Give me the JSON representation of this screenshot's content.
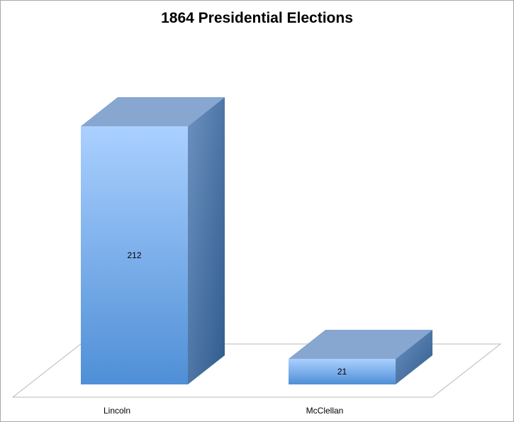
{
  "chart_data": {
    "type": "bar",
    "style": "3d-column",
    "title": "1864 Presidential Elections",
    "xlabel": "",
    "ylabel": "",
    "categories": [
      "Lincoln",
      "McClellan"
    ],
    "values": [
      212,
      21
    ],
    "data_labels": [
      "212",
      "21"
    ],
    "ylim": [
      0,
      212
    ],
    "grid": false,
    "legend": "none",
    "colors": {
      "front_top": "#aad0ff",
      "front_bottom": "#4f8fd6",
      "top_face": "#87a6d0",
      "side_light": "#6d91c0",
      "side_dark": "#2f5c8c",
      "floor_stroke": "#b8b8b8"
    }
  }
}
